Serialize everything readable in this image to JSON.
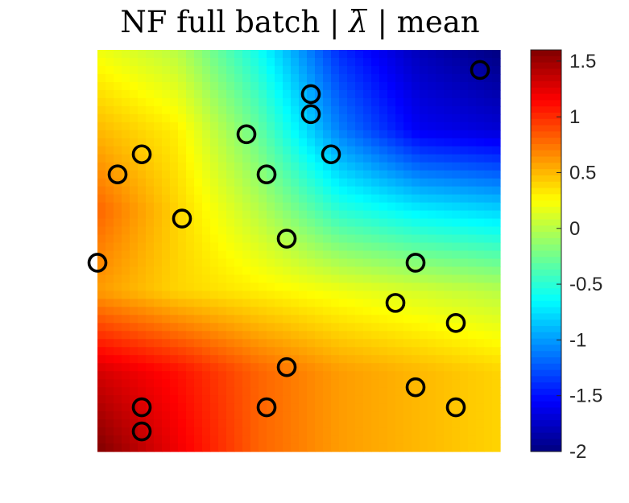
{
  "title": {
    "prefix": "NF full batch |",
    "symbol": "λ",
    "suffix": "| mean"
  },
  "chart_data": {
    "type": "heatmap",
    "title": "NF full batch | λ̄ | mean",
    "xlabel": "",
    "ylabel": "",
    "colorbar": {
      "colormap": "jet",
      "range": [
        -2,
        1.6
      ],
      "ticks": [
        1.5,
        1,
        0.5,
        0,
        -0.5,
        -1,
        -1.5,
        -2
      ],
      "tick_labels": [
        "1.5",
        "1",
        "0.5",
        "0",
        "-0.5",
        "-1",
        "-1.5",
        "-2"
      ]
    },
    "field_grid_x": [
      0.0,
      0.2,
      0.4,
      0.6,
      0.8,
      1.0
    ],
    "field_grid_y": [
      1.0,
      0.8,
      0.6,
      0.4,
      0.2,
      0.0
    ],
    "field_values": [
      [
        0.2,
        0.0,
        -0.6,
        -1.4,
        -1.8,
        -2.0
      ],
      [
        0.5,
        0.3,
        -0.3,
        -1.1,
        -1.6,
        -1.7
      ],
      [
        0.8,
        0.4,
        0.0,
        -0.5,
        -0.7,
        -0.8
      ],
      [
        0.6,
        0.4,
        0.3,
        0.2,
        0.1,
        0.0
      ],
      [
        1.3,
        1.1,
        0.8,
        0.6,
        0.5,
        0.4
      ],
      [
        1.6,
        1.2,
        0.8,
        0.6,
        0.5,
        0.4
      ]
    ],
    "points": [
      {
        "x": 0.95,
        "y": 0.95
      },
      {
        "x": 0.53,
        "y": 0.89
      },
      {
        "x": 0.53,
        "y": 0.84
      },
      {
        "x": 0.37,
        "y": 0.79
      },
      {
        "x": 0.58,
        "y": 0.74
      },
      {
        "x": 0.11,
        "y": 0.74
      },
      {
        "x": 0.05,
        "y": 0.69
      },
      {
        "x": 0.42,
        "y": 0.69
      },
      {
        "x": 0.21,
        "y": 0.58
      },
      {
        "x": 0.47,
        "y": 0.53
      },
      {
        "x": 0.0,
        "y": 0.47
      },
      {
        "x": 0.79,
        "y": 0.47
      },
      {
        "x": 0.74,
        "y": 0.37
      },
      {
        "x": 0.89,
        "y": 0.32
      },
      {
        "x": 0.47,
        "y": 0.21
      },
      {
        "x": 0.79,
        "y": 0.16
      },
      {
        "x": 0.11,
        "y": 0.11
      },
      {
        "x": 0.42,
        "y": 0.11
      },
      {
        "x": 0.89,
        "y": 0.11
      },
      {
        "x": 0.11,
        "y": 0.05
      }
    ]
  }
}
